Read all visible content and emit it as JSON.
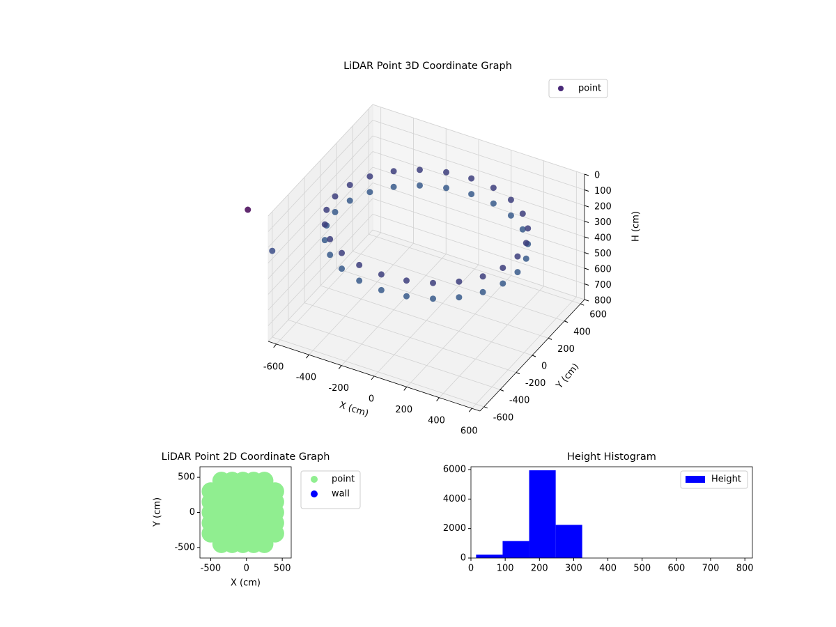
{
  "chart_data": [
    {
      "type": "scatter3d",
      "title": "LiDAR Point 3D Coordinate Graph",
      "xlabel": "X (cm)",
      "ylabel": "Y (cm)",
      "zlabel": "H (cm)",
      "xlim": [
        -650,
        650
      ],
      "ylim": [
        -650,
        650
      ],
      "zlim": [
        800,
        0
      ],
      "xticks": [
        -600,
        -400,
        -200,
        0,
        200,
        400,
        600
      ],
      "yticks": [
        -600,
        -400,
        -200,
        0,
        200,
        400,
        600
      ],
      "zticks": [
        0,
        100,
        200,
        300,
        400,
        500,
        600,
        700,
        800
      ],
      "grid": true,
      "legend": "upper right",
      "colormap": [
        "#440154",
        "#3b528b",
        "#21918c",
        "#5ec962"
      ],
      "series": [
        {
          "name": "point",
          "color": "#482878",
          "x": [
            560,
            541,
            485,
            396,
            280,
            145,
            0,
            -145,
            -280,
            -396,
            -485,
            -541,
            -560,
            -541,
            -485,
            -396,
            -280,
            -145,
            0,
            145,
            280,
            396,
            485,
            541,
            560,
            541,
            485,
            396,
            280,
            145,
            0,
            -145,
            -280,
            -396,
            -485,
            -541,
            -560,
            -541,
            -485,
            -396,
            -280,
            -145,
            0,
            145,
            280,
            396,
            485,
            541,
            -780,
            -650
          ],
          "y": [
            0,
            145,
            280,
            396,
            485,
            541,
            560,
            541,
            485,
            396,
            280,
            145,
            0,
            -145,
            -280,
            -396,
            -485,
            -541,
            -560,
            -541,
            -485,
            -396,
            -280,
            -145,
            0,
            145,
            280,
            396,
            485,
            541,
            560,
            541,
            485,
            396,
            280,
            145,
            0,
            -145,
            -280,
            -396,
            -485,
            -541,
            -560,
            -541,
            -485,
            -396,
            -280,
            -145,
            -640,
            -600
          ],
          "z": [
            200,
            200,
            200,
            200,
            200,
            200,
            200,
            200,
            200,
            200,
            200,
            200,
            200,
            200,
            200,
            200,
            200,
            200,
            200,
            200,
            200,
            200,
            200,
            200,
            300,
            300,
            300,
            300,
            300,
            300,
            300,
            300,
            300,
            300,
            300,
            300,
            300,
            300,
            300,
            300,
            300,
            300,
            300,
            300,
            300,
            300,
            300,
            300,
            10,
            250
          ]
        }
      ]
    },
    {
      "type": "scatter",
      "title": "LiDAR Point 2D Coordinate Graph",
      "xlabel": "X (cm)",
      "ylabel": "Y (cm)",
      "xlim": [
        -650,
        625
      ],
      "ylim": [
        -650,
        650
      ],
      "xticks": [
        -500,
        0,
        500
      ],
      "yticks": [
        -500,
        0,
        500
      ],
      "legend": "outside upper right",
      "series": [
        {
          "name": "point",
          "color": "#90ee90",
          "x": [
            -350,
            -200,
            -50,
            100,
            250,
            -500,
            -350,
            -200,
            -50,
            100,
            250,
            400,
            -500,
            -350,
            -200,
            -50,
            100,
            250,
            400,
            -500,
            -350,
            -200,
            -50,
            100,
            250,
            400,
            -500,
            -350,
            -200,
            -50,
            100,
            250,
            400,
            -500,
            -350,
            -200,
            -50,
            100,
            250,
            400,
            -350,
            -200,
            -50,
            100,
            250
          ],
          "y": [
            450,
            450,
            450,
            450,
            450,
            300,
            300,
            300,
            300,
            300,
            300,
            300,
            150,
            150,
            150,
            150,
            150,
            150,
            150,
            0,
            0,
            0,
            0,
            0,
            0,
            0,
            -150,
            -150,
            -150,
            -150,
            -150,
            -150,
            -150,
            -300,
            -300,
            -300,
            -300,
            -300,
            -300,
            -300,
            -450,
            -450,
            -450,
            -450,
            -450
          ]
        },
        {
          "name": "wall",
          "color": "#0000ff",
          "x": [],
          "y": []
        }
      ]
    },
    {
      "type": "histogram",
      "title": "Height Histogram",
      "legend": "upper right",
      "xlim": [
        0,
        822
      ],
      "ylim": [
        0,
        6190
      ],
      "xticks": [
        0,
        100,
        200,
        300,
        400,
        500,
        600,
        700,
        800
      ],
      "yticks": [
        0,
        2000,
        4000,
        6000
      ],
      "series": [
        {
          "name": "Height",
          "color": "#0000ff",
          "bins": [
            15,
            92.5,
            170,
            247.5,
            325,
            402.5,
            480,
            557.5,
            635,
            712.5,
            790
          ],
          "values": [
            230,
            1150,
            5950,
            2250,
            0,
            0,
            0,
            0,
            0,
            0
          ]
        }
      ]
    }
  ]
}
